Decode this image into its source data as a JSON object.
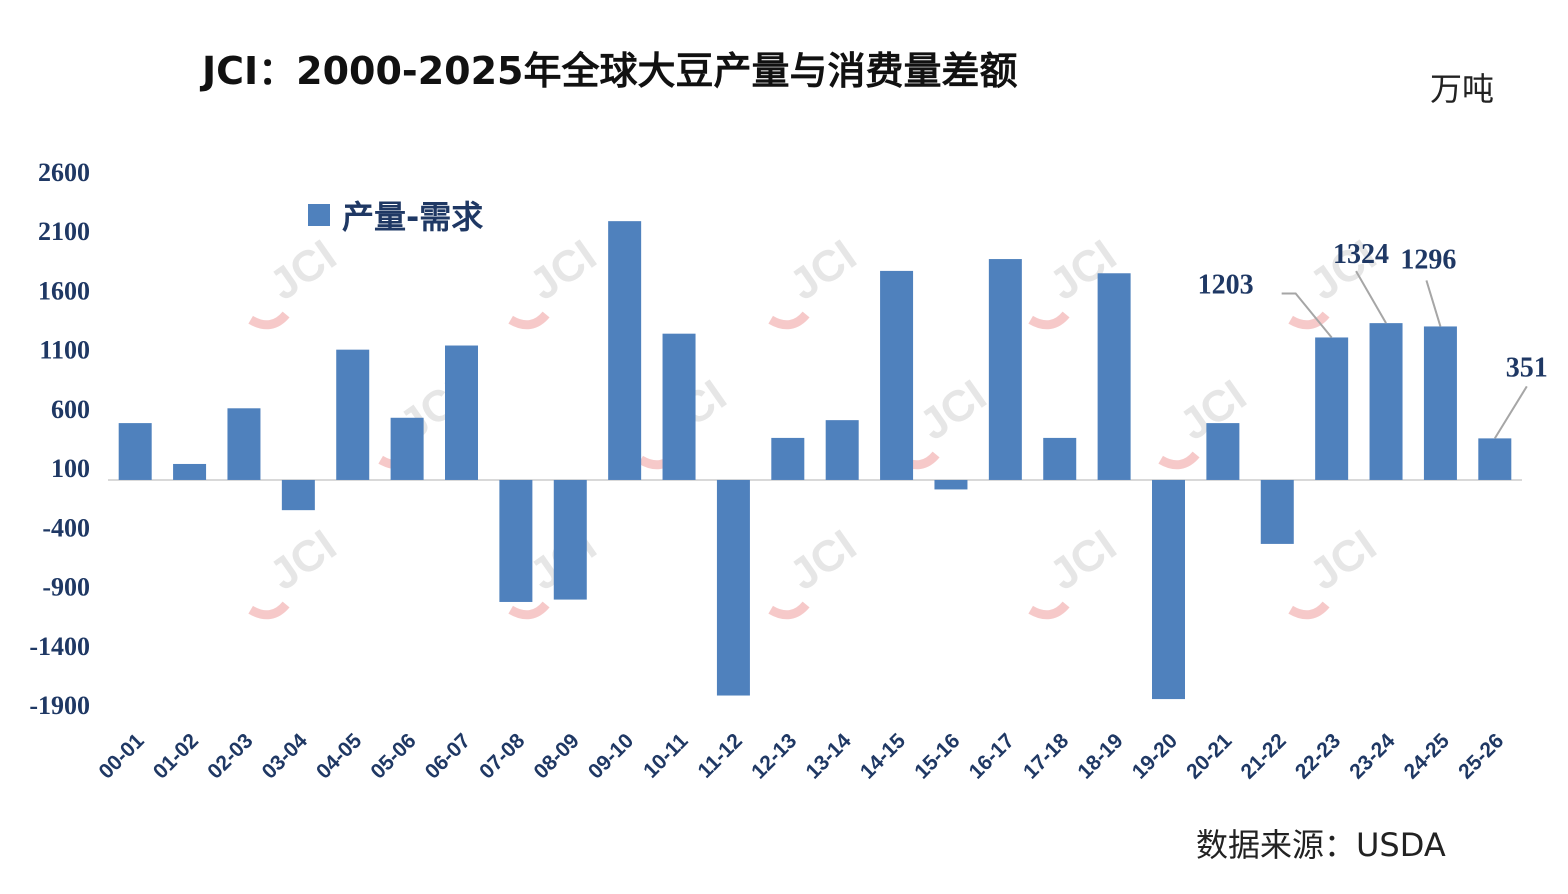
{
  "title": "JCI：2000-2025年全球大豆产量与消费量差额",
  "unit": "万吨",
  "source": "数据来源：USDA",
  "watermark": "JCI",
  "colors": {
    "bar": "#4f81bd",
    "axis_text": "#1f3864",
    "title": "#111111"
  },
  "chart_data": {
    "type": "bar",
    "legend_position": "top-left",
    "grid": false,
    "ylim": [
      -1900,
      2600
    ],
    "yticks": [
      2600,
      2100,
      1600,
      1100,
      600,
      100,
      -400,
      -900,
      -1400,
      -1900
    ],
    "categories": [
      "00-01",
      "01-02",
      "02-03",
      "03-04",
      "04-05",
      "05-06",
      "06-07",
      "07-08",
      "08-09",
      "09-10",
      "10-11",
      "11-12",
      "12-13",
      "13-14",
      "14-15",
      "15-16",
      "16-17",
      "17-18",
      "18-19",
      "19-20",
      "20-21",
      "21-22",
      "22-23",
      "23-24",
      "24-25",
      "25-26"
    ],
    "series": [
      {
        "name": "产量-需求",
        "values": [
          480,
          135,
          605,
          -255,
          1100,
          525,
          1135,
          -1030,
          -1010,
          2185,
          1235,
          -1820,
          355,
          505,
          1765,
          -80,
          1865,
          355,
          1745,
          -1850,
          480,
          -540,
          1203,
          1324,
          1296,
          351
        ]
      }
    ],
    "data_labels": [
      {
        "category": "22-23",
        "text": "1203"
      },
      {
        "category": "23-24",
        "text": "1324"
      },
      {
        "category": "24-25",
        "text": "1296"
      },
      {
        "category": "25-26",
        "text": "351"
      }
    ]
  }
}
